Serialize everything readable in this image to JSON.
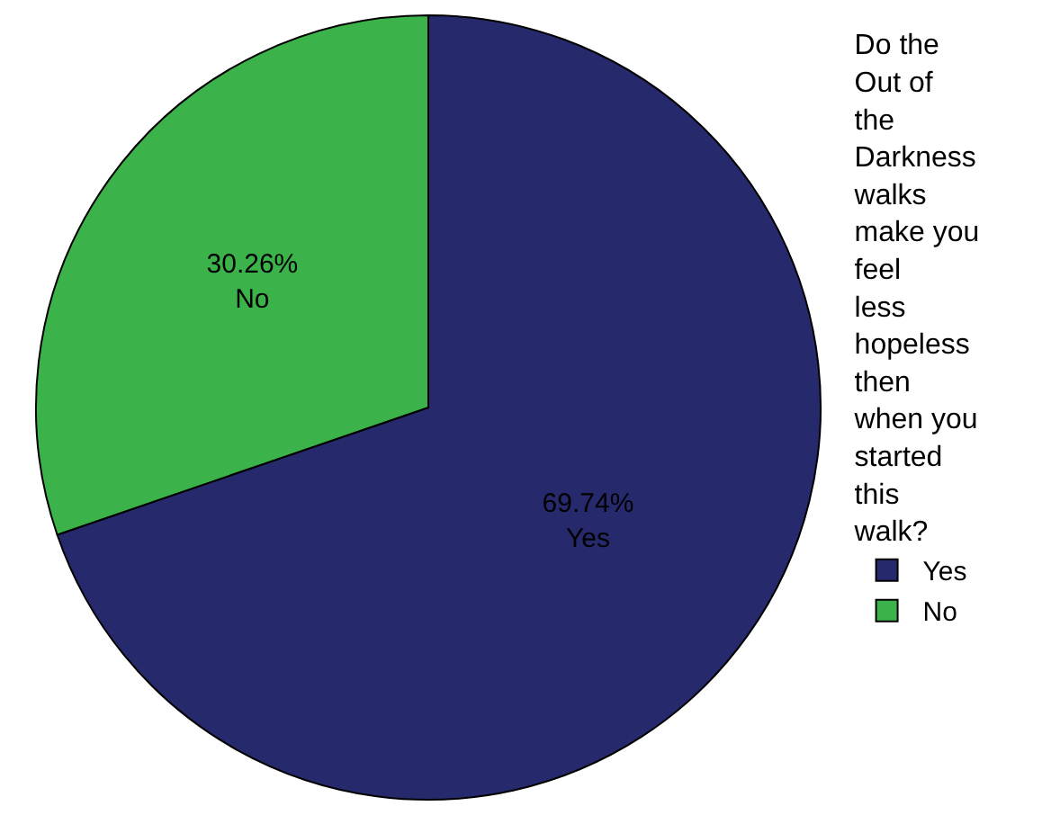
{
  "chart_data": {
    "type": "pie",
    "legend_title": "Do the Out of the Darkness walks make you feel less hopeless then when you started this walk?",
    "categories": [
      "Yes",
      "No"
    ],
    "values": [
      69.74,
      30.26
    ],
    "colors": [
      "#27296d",
      "#3cb34a"
    ],
    "value_labels": [
      "69.74%",
      "30.26%"
    ],
    "legend": "right"
  }
}
